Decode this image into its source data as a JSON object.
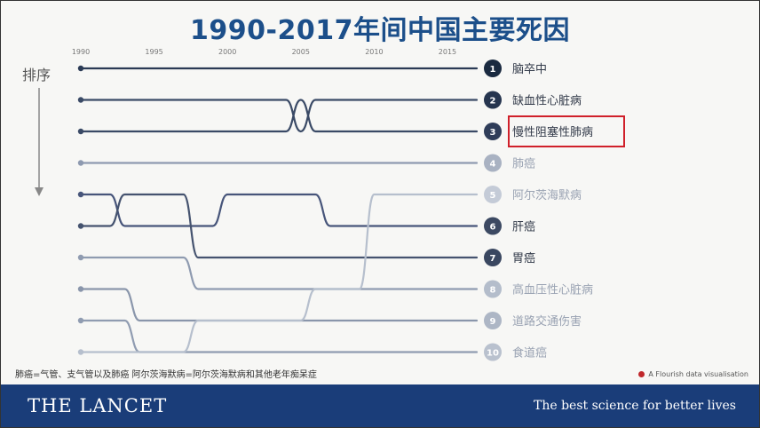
{
  "slide": {
    "order_label": "排序",
    "footnote": "肺癌=气管、支气管以及肺癌   阿尔茨海默病=阿尔茨海默病和其他老年痴呆症",
    "credit": "A Flourish data visualisation",
    "brand": "THE LANCET",
    "tagline": "The best science for better lives"
  },
  "chart_data": {
    "type": "bump",
    "title": "1990-2017年间中国主要死因",
    "x_ticks": [
      1990,
      1995,
      2000,
      2005,
      2010,
      2015
    ],
    "xlim": [
      1990,
      2017
    ],
    "rank_range": [
      1,
      10
    ],
    "final_labels": [
      {
        "rank": 1,
        "label": "脑卒中",
        "color": "#1a2a40"
      },
      {
        "rank": 2,
        "label": "缺血性心脏病",
        "color": "#26354f"
      },
      {
        "rank": 3,
        "label": "慢性阻塞性肺病",
        "color": "#2f3d59"
      },
      {
        "rank": 4,
        "label": "肺癌",
        "color": "#a9b2c2"
      },
      {
        "rank": 5,
        "label": "阿尔茨海默病",
        "color": "#c4cbd7"
      },
      {
        "rank": 6,
        "label": "肝癌",
        "color": "#3c4962"
      },
      {
        "rank": 7,
        "label": "胃癌",
        "color": "#3a4760"
      },
      {
        "rank": 8,
        "label": "高血压性心脏病",
        "color": "#b4bdcb"
      },
      {
        "rank": 9,
        "label": "道路交通伤害",
        "color": "#adb6c5"
      },
      {
        "rank": 10,
        "label": "食道癌",
        "color": "#b9c1ce"
      }
    ],
    "highlighted": "慢性阻塞性肺病",
    "series": [
      {
        "name": "脑卒中",
        "color": "#2a3a55",
        "points": [
          [
            1990,
            1
          ],
          [
            2017,
            1
          ]
        ]
      },
      {
        "name": "缺血性心脏病",
        "color": "#3a4a66",
        "points": [
          [
            1990,
            2
          ],
          [
            2004,
            2
          ],
          [
            2005,
            3
          ],
          [
            2006,
            2
          ],
          [
            2017,
            2
          ]
        ]
      },
      {
        "name": "慢性阻塞性肺病",
        "color": "#3a4a66",
        "points": [
          [
            1990,
            3
          ],
          [
            2004,
            3
          ],
          [
            2005,
            2
          ],
          [
            2006,
            3
          ],
          [
            2017,
            3
          ]
        ]
      },
      {
        "name": "肺癌",
        "color": "#8e9ab0",
        "points": [
          [
            1990,
            4
          ],
          [
            1998,
            4
          ],
          [
            2000,
            4
          ],
          [
            2017,
            4
          ]
        ]
      },
      {
        "name": "肝癌",
        "color": "#47557a",
        "points": [
          [
            1990,
            5
          ],
          [
            1992,
            5
          ],
          [
            1993,
            6
          ],
          [
            1999,
            6
          ],
          [
            2000,
            5
          ],
          [
            2006,
            5
          ],
          [
            2007,
            6
          ],
          [
            2017,
            6
          ]
        ]
      },
      {
        "name": "胃癌",
        "color": "#45536f",
        "points": [
          [
            1990,
            6
          ],
          [
            1992,
            6
          ],
          [
            1993,
            5
          ],
          [
            1997,
            5
          ],
          [
            1998,
            7
          ],
          [
            2008,
            7
          ],
          [
            2009,
            7
          ],
          [
            2017,
            7
          ]
        ]
      },
      {
        "name": "高血压性心脏病",
        "color": "#8f9bb0",
        "points": [
          [
            1990,
            7
          ],
          [
            1997,
            7
          ],
          [
            1998,
            8
          ],
          [
            2009,
            8
          ],
          [
            2010,
            8
          ],
          [
            2017,
            8
          ]
        ]
      },
      {
        "name": "道路交通伤害",
        "color": "#8a96ab",
        "points": [
          [
            1990,
            8
          ],
          [
            1993,
            8
          ],
          [
            1994,
            9
          ],
          [
            2009,
            9
          ],
          [
            2010,
            9
          ],
          [
            2017,
            9
          ]
        ]
      },
      {
        "name": "食道癌",
        "color": "#909cb1",
        "points": [
          [
            1990,
            9
          ],
          [
            1993,
            9
          ],
          [
            1994,
            10
          ],
          [
            2017,
            10
          ]
        ]
      },
      {
        "name": "阿尔茨海默病",
        "color": "#b6bfcd",
        "points": [
          [
            1990,
            10
          ],
          [
            1997,
            10
          ],
          [
            1998,
            9
          ],
          [
            2005,
            9
          ],
          [
            2006,
            8
          ],
          [
            2009,
            8
          ],
          [
            2010,
            5
          ],
          [
            2017,
            5
          ]
        ]
      }
    ]
  }
}
